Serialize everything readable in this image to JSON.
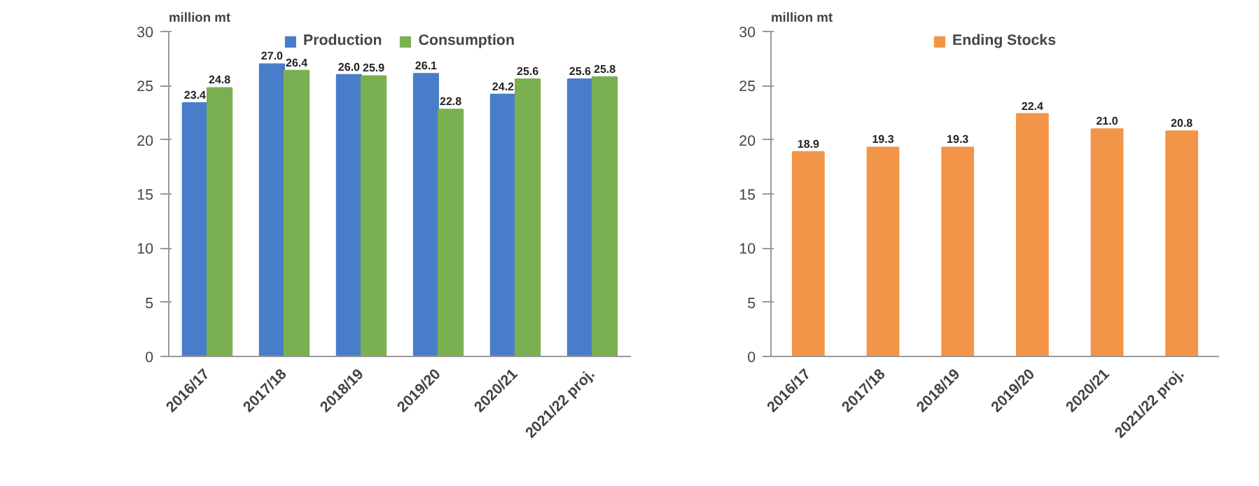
{
  "chart_data": [
    {
      "type": "bar",
      "ylabel": "million mt",
      "categories": [
        "2016/17",
        "2017/18",
        "2018/19",
        "2019/20",
        "2020/21",
        "2021/22 proj."
      ],
      "series": [
        {
          "name": "Production",
          "color": "#4a7dc9",
          "values": [
            23.4,
            27.0,
            26.0,
            26.1,
            24.2,
            25.6
          ],
          "value_labels": [
            "23.4",
            "27.0",
            "26.0",
            "26.1",
            "24.2",
            "25.6"
          ]
        },
        {
          "name": "Consumption",
          "color": "#7ab051",
          "values": [
            24.8,
            26.4,
            25.9,
            22.8,
            25.6,
            25.8
          ]
        }
      ],
      "ylim": [
        0,
        30
      ],
      "yticks": [
        0,
        5,
        10,
        15,
        20,
        25,
        30
      ],
      "data_labels": true,
      "legend": "top",
      "grid": false
    },
    {
      "type": "bar",
      "ylabel": "million mt",
      "categories": [
        "2016/17",
        "2017/18",
        "2018/19",
        "2019/20",
        "2020/21",
        "2021/22 proj."
      ],
      "series": [
        {
          "name": "Ending Stocks",
          "color": "#f29548",
          "values": [
            18.9,
            19.3,
            19.3,
            22.4,
            21.0,
            20.8
          ],
          "value_labels": [
            "18.9",
            "19.3",
            "19.3",
            "22.4",
            "21.0",
            "20.8"
          ]
        }
      ],
      "ylim": [
        0,
        30
      ],
      "yticks": [
        0,
        5,
        10,
        15,
        20,
        25,
        30
      ],
      "data_labels": true,
      "legend": "top",
      "grid": false
    }
  ]
}
